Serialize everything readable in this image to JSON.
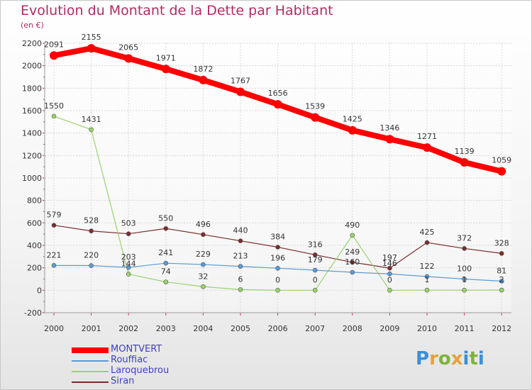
{
  "header": {
    "title": "Evolution du Montant de la Dette par Habitant",
    "subtitle": "(en €)"
  },
  "legend": [
    {
      "label": "MONTVERT",
      "color": "#ff0000"
    },
    {
      "label": "Rouffiac",
      "color": "#5b9bd5"
    },
    {
      "label": "Laroquebrou",
      "color": "#99d36b"
    },
    {
      "label": "Siran",
      "color": "#7b2c2c"
    }
  ],
  "logo": {
    "letters": [
      "P",
      "r",
      "o",
      "x",
      "i",
      "t",
      "i"
    ],
    "colors": [
      "#3a8fd9",
      "#e8a23a",
      "#7cb53a",
      "#e8a23a",
      "#3a8fd9",
      "#7cb53a",
      "#3a8fd9"
    ]
  },
  "chart_data": {
    "type": "line",
    "title": "Evolution du Montant de la Dette par Habitant",
    "subtitle": "(en €)",
    "xlabel": "",
    "ylabel": "",
    "ylim": [
      -200,
      2200
    ],
    "yticks": [
      -200,
      0,
      200,
      400,
      600,
      800,
      1000,
      1200,
      1400,
      1600,
      1800,
      2000,
      2200
    ],
    "grid": true,
    "legend_position": "bottom-left",
    "x": [
      "2000",
      "2001",
      "2002",
      "2003",
      "2004",
      "2005",
      "2006",
      "2007",
      "2008",
      "2009",
      "2010",
      "2011",
      "2012"
    ],
    "series": [
      {
        "name": "MONTVERT",
        "color": "#ff0000",
        "values": [
          2091,
          2155,
          2065,
          1971,
          1872,
          1767,
          1656,
          1539,
          1425,
          1346,
          1271,
          1139,
          1059
        ]
      },
      {
        "name": "Rouffiac",
        "color": "#5b9bd5",
        "values": [
          221,
          220,
          203,
          241,
          229,
          213,
          196,
          179,
          160,
          146,
          122,
          100,
          81
        ]
      },
      {
        "name": "Laroquebrou",
        "color": "#99d36b",
        "values": [
          1550,
          1431,
          144,
          74,
          32,
          6,
          0,
          0,
          490,
          0,
          1,
          1,
          2
        ]
      },
      {
        "name": "Siran",
        "color": "#7b2c2c",
        "values": [
          579,
          528,
          503,
          550,
          496,
          440,
          384,
          316,
          249,
          197,
          425,
          372,
          328
        ]
      }
    ]
  }
}
